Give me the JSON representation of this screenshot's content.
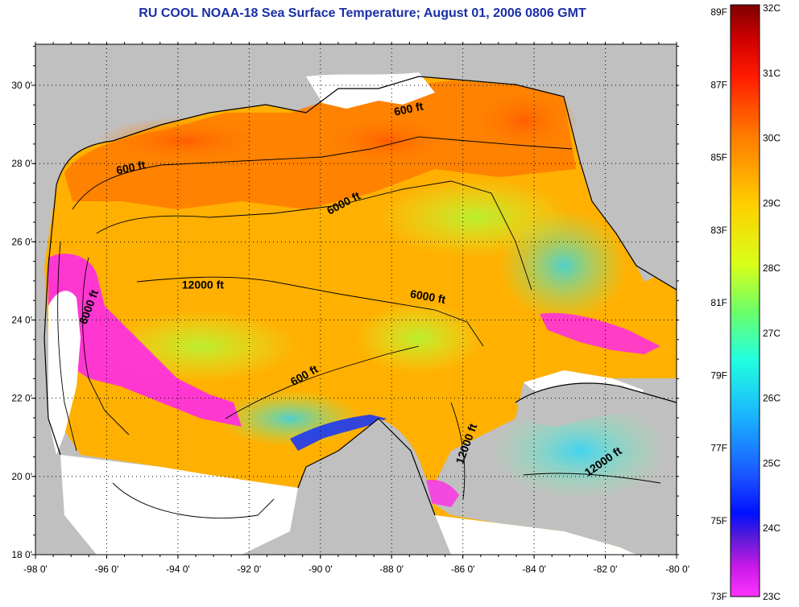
{
  "title": "RU COOL  NOAA-18  Sea Surface Temperature;  August 01, 2006 0806 GMT",
  "map": {
    "lon_ticks": [
      "-98 0'",
      "-96 0'",
      "-94 0'",
      "-92 0'",
      "-90 0'",
      "-88 0'",
      "-86 0'",
      "-84 0'",
      "-82 0'",
      "-80 0'"
    ],
    "lat_ticks": [
      "30 0'",
      "28 0'",
      "26 0'",
      "24 0'",
      "22 0'",
      "20 0'",
      "18 0'"
    ],
    "contour_labels": [
      {
        "text": "600 ft",
        "lon": -95.3,
        "lat": 27.8,
        "angle": -12
      },
      {
        "text": "600 ft",
        "lon": -87.5,
        "lat": 29.3,
        "angle": -12
      },
      {
        "text": "6000 ft",
        "lon": -89.3,
        "lat": 26.9,
        "angle": -28
      },
      {
        "text": "12000 ft",
        "lon": -93.3,
        "lat": 24.8,
        "angle": 0
      },
      {
        "text": "6000 ft",
        "lon": -96.4,
        "lat": 24.3,
        "angle": -70
      },
      {
        "text": "6000 ft",
        "lon": -87.0,
        "lat": 24.5,
        "angle": 10
      },
      {
        "text": "600 ft",
        "lon": -90.4,
        "lat": 22.5,
        "angle": -30
      },
      {
        "text": "12000 ft",
        "lon": -85.8,
        "lat": 20.8,
        "angle": -70
      },
      {
        "text": "12000 ft",
        "lon": -82.0,
        "lat": 20.3,
        "angle": -35
      }
    ],
    "colors": {
      "land": "#c0c0c0",
      "no_data": "#ffffff",
      "warm": "#ff6a00",
      "mid": "#ffc800",
      "cool": "#22d3ff",
      "cold": "#ff1aff"
    }
  },
  "colorbar": {
    "fahrenheit": [
      "89F",
      "87F",
      "85F",
      "83F",
      "81F",
      "79F",
      "77F",
      "75F",
      "73F"
    ],
    "celsius": [
      "32C",
      "31C",
      "30C",
      "29C",
      "28C",
      "27C",
      "26C",
      "25C",
      "24C",
      "23C"
    ]
  }
}
